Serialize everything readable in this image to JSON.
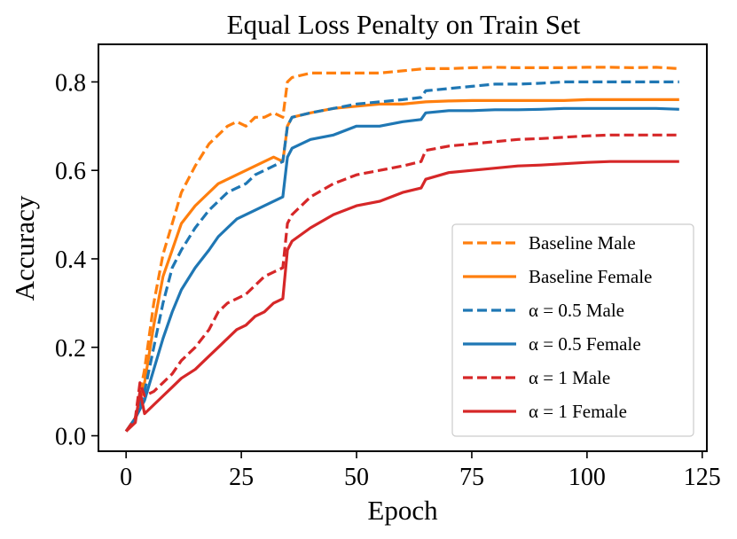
{
  "chart_data": {
    "type": "line",
    "title": "Equal Loss Penalty on Train Set",
    "xlabel": "Epoch",
    "ylabel": "Accuracy",
    "xlim": [
      -6,
      126
    ],
    "ylim": [
      -0.035,
      0.885
    ],
    "xticks": [
      0,
      25,
      50,
      75,
      100,
      125
    ],
    "yticks": [
      0.0,
      0.2,
      0.4,
      0.6,
      0.8
    ],
    "xtick_labels": [
      "0",
      "25",
      "50",
      "75",
      "100",
      "125"
    ],
    "ytick_labels": [
      "0.0",
      "0.2",
      "0.4",
      "0.6",
      "0.8"
    ],
    "grid": false,
    "legend_position": "lower-right",
    "series": [
      {
        "name": "Baseline Male",
        "color": "#ff7f0e",
        "dash": "dashed",
        "x": [
          0,
          2,
          4,
          6,
          8,
          10,
          12,
          15,
          18,
          20,
          22,
          24,
          26,
          28,
          30,
          32,
          34,
          35,
          36,
          40,
          45,
          50,
          55,
          60,
          65,
          70,
          75,
          80,
          85,
          90,
          95,
          100,
          105,
          110,
          115,
          120
        ],
        "y": [
          0.01,
          0.04,
          0.15,
          0.3,
          0.41,
          0.48,
          0.55,
          0.61,
          0.66,
          0.68,
          0.7,
          0.71,
          0.7,
          0.72,
          0.72,
          0.73,
          0.72,
          0.8,
          0.81,
          0.82,
          0.82,
          0.82,
          0.82,
          0.825,
          0.83,
          0.83,
          0.832,
          0.833,
          0.832,
          0.832,
          0.832,
          0.833,
          0.833,
          0.832,
          0.833,
          0.83
        ]
      },
      {
        "name": "Baseline Female",
        "color": "#ff7f0e",
        "dash": "solid",
        "x": [
          0,
          2,
          4,
          6,
          8,
          10,
          12,
          15,
          18,
          20,
          22,
          24,
          26,
          28,
          30,
          32,
          34,
          35,
          36,
          40,
          45,
          50,
          55,
          60,
          65,
          70,
          75,
          80,
          85,
          90,
          95,
          100,
          105,
          110,
          115,
          120
        ],
        "y": [
          0.01,
          0.04,
          0.12,
          0.25,
          0.36,
          0.42,
          0.48,
          0.52,
          0.55,
          0.57,
          0.58,
          0.59,
          0.6,
          0.61,
          0.62,
          0.63,
          0.62,
          0.7,
          0.72,
          0.73,
          0.74,
          0.745,
          0.75,
          0.75,
          0.755,
          0.757,
          0.758,
          0.758,
          0.758,
          0.758,
          0.758,
          0.76,
          0.76,
          0.76,
          0.76,
          0.76
        ]
      },
      {
        "name": "α = 0.5 Male",
        "color": "#1f77b4",
        "dash": "dashed",
        "x": [
          0,
          2,
          4,
          6,
          8,
          10,
          12,
          15,
          18,
          20,
          22,
          24,
          26,
          28,
          30,
          32,
          34,
          35,
          36,
          40,
          45,
          50,
          55,
          60,
          64,
          65,
          70,
          75,
          80,
          85,
          90,
          95,
          100,
          105,
          110,
          115,
          120
        ],
        "y": [
          0.01,
          0.04,
          0.1,
          0.2,
          0.3,
          0.38,
          0.42,
          0.47,
          0.51,
          0.53,
          0.55,
          0.56,
          0.57,
          0.59,
          0.6,
          0.61,
          0.62,
          0.7,
          0.72,
          0.73,
          0.74,
          0.75,
          0.755,
          0.76,
          0.765,
          0.78,
          0.785,
          0.79,
          0.795,
          0.795,
          0.797,
          0.8,
          0.8,
          0.8,
          0.8,
          0.8,
          0.8
        ]
      },
      {
        "name": "α = 0.5 Female",
        "color": "#1f77b4",
        "dash": "solid",
        "x": [
          0,
          2,
          4,
          6,
          8,
          10,
          12,
          15,
          18,
          20,
          22,
          24,
          26,
          28,
          30,
          32,
          34,
          35,
          36,
          40,
          45,
          50,
          55,
          60,
          64,
          65,
          70,
          75,
          80,
          85,
          90,
          95,
          100,
          105,
          110,
          115,
          120
        ],
        "y": [
          0.01,
          0.04,
          0.08,
          0.15,
          0.22,
          0.28,
          0.33,
          0.38,
          0.42,
          0.45,
          0.47,
          0.49,
          0.5,
          0.51,
          0.52,
          0.53,
          0.54,
          0.63,
          0.65,
          0.67,
          0.68,
          0.7,
          0.7,
          0.71,
          0.715,
          0.73,
          0.735,
          0.735,
          0.737,
          0.737,
          0.738,
          0.74,
          0.74,
          0.74,
          0.74,
          0.74,
          0.738
        ]
      },
      {
        "name": "α = 1 Male",
        "color": "#d62728",
        "dash": "dashed",
        "x": [
          0,
          2,
          3,
          4,
          6,
          8,
          10,
          12,
          15,
          18,
          20,
          22,
          24,
          26,
          28,
          30,
          32,
          34,
          35,
          36,
          40,
          45,
          50,
          55,
          60,
          64,
          65,
          70,
          75,
          80,
          85,
          90,
          95,
          100,
          105,
          110,
          115,
          120
        ],
        "y": [
          0.01,
          0.04,
          0.12,
          0.09,
          0.1,
          0.12,
          0.14,
          0.17,
          0.2,
          0.24,
          0.28,
          0.3,
          0.31,
          0.32,
          0.34,
          0.36,
          0.37,
          0.38,
          0.48,
          0.5,
          0.54,
          0.57,
          0.59,
          0.6,
          0.61,
          0.62,
          0.645,
          0.655,
          0.66,
          0.665,
          0.67,
          0.672,
          0.675,
          0.678,
          0.68,
          0.68,
          0.68,
          0.68
        ]
      },
      {
        "name": "α = 1 Female",
        "color": "#d62728",
        "dash": "solid",
        "x": [
          0,
          2,
          3,
          4,
          6,
          8,
          10,
          12,
          15,
          18,
          20,
          22,
          24,
          26,
          28,
          30,
          32,
          34,
          35,
          36,
          40,
          45,
          50,
          55,
          60,
          64,
          65,
          70,
          75,
          80,
          85,
          90,
          95,
          100,
          105,
          110,
          115,
          120
        ],
        "y": [
          0.01,
          0.03,
          0.1,
          0.05,
          0.07,
          0.09,
          0.11,
          0.13,
          0.15,
          0.18,
          0.2,
          0.22,
          0.24,
          0.25,
          0.27,
          0.28,
          0.3,
          0.31,
          0.42,
          0.44,
          0.47,
          0.5,
          0.52,
          0.53,
          0.55,
          0.56,
          0.58,
          0.595,
          0.6,
          0.605,
          0.61,
          0.612,
          0.615,
          0.618,
          0.62,
          0.62,
          0.62,
          0.62
        ]
      }
    ]
  }
}
